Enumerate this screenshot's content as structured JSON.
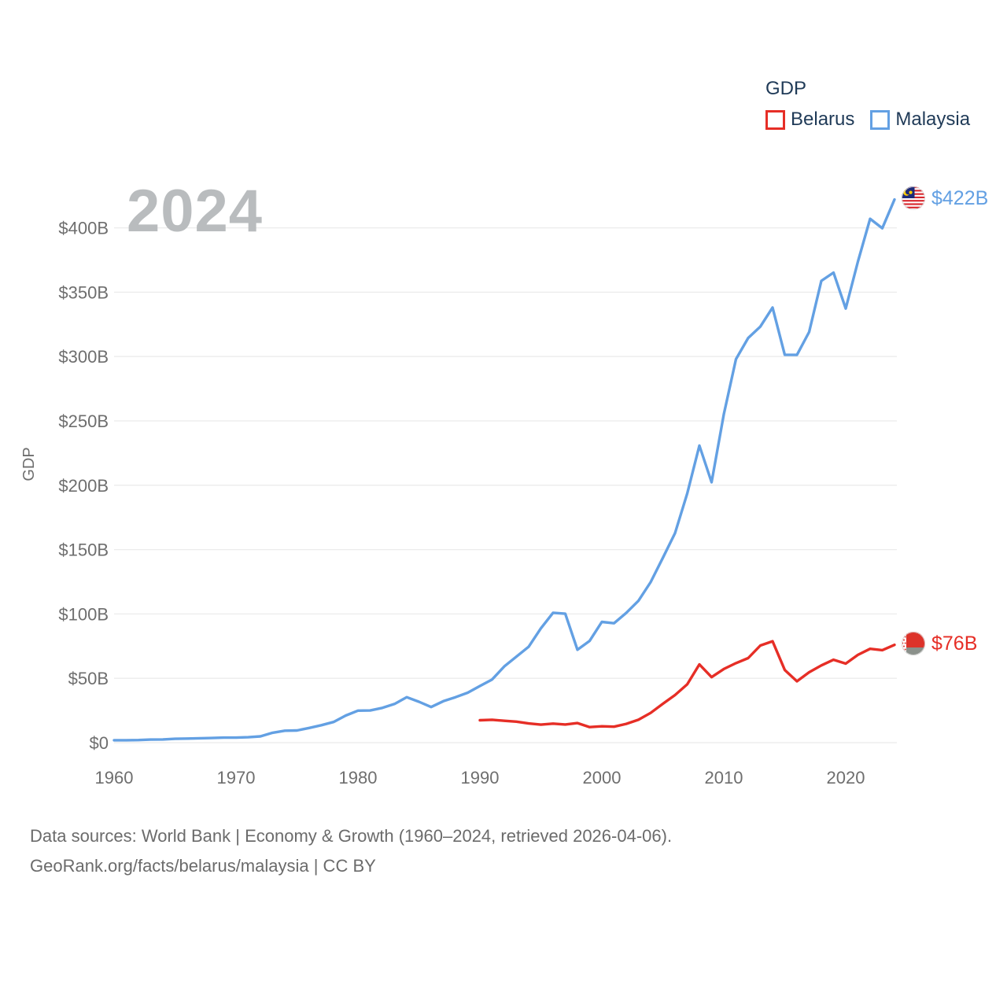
{
  "colors": {
    "legend_text": "#1f3a57",
    "axis_text": "#6e6e6e",
    "grid": "#ebebeb",
    "watermark": "#b9bcbe",
    "footer_text": "#6b6b6b",
    "background": "#ffffff"
  },
  "footer": {
    "line1": "Data sources: World Bank | Economy & Growth (1960–2024, retrieved 2026-04-06).",
    "line2": "GeoRank.org/facts/belarus/malaysia | CC BY"
  },
  "chart_data": {
    "type": "line",
    "title": "GDP",
    "ylabel": "GDP",
    "watermark": "2024",
    "grid": true,
    "legend_position": "top-right",
    "xlim": [
      1960,
      2024
    ],
    "ylim": [
      0,
      430
    ],
    "x_ticks": [
      1960,
      1970,
      1980,
      1990,
      2000,
      2010,
      2020
    ],
    "y_ticks": [
      {
        "value": 0,
        "label": "$0"
      },
      {
        "value": 50,
        "label": "$50B"
      },
      {
        "value": 100,
        "label": "$100B"
      },
      {
        "value": 150,
        "label": "$150B"
      },
      {
        "value": 200,
        "label": "$200B"
      },
      {
        "value": 250,
        "label": "$250B"
      },
      {
        "value": 300,
        "label": "$300B"
      },
      {
        "value": 350,
        "label": "$350B"
      },
      {
        "value": 400,
        "label": "$400B"
      }
    ],
    "unit": "billions of USD",
    "series": [
      {
        "name": "Belarus",
        "color": "#e62e26",
        "end_label": "$76B",
        "years": [
          1990,
          1991,
          1992,
          1993,
          1994,
          1995,
          1996,
          1997,
          1998,
          1999,
          2000,
          2001,
          2002,
          2003,
          2004,
          2005,
          2006,
          2007,
          2008,
          2009,
          2010,
          2011,
          2012,
          2013,
          2014,
          2015,
          2016,
          2017,
          2018,
          2019,
          2020,
          2021,
          2022,
          2023,
          2024
        ],
        "values": [
          17.4,
          17.8,
          17.0,
          16.3,
          14.9,
          14.0,
          14.8,
          14.1,
          15.2,
          12.1,
          12.7,
          12.4,
          14.6,
          17.8,
          23.1,
          30.2,
          37.0,
          45.3,
          60.8,
          50.9,
          57.2,
          61.8,
          65.7,
          75.5,
          78.8,
          56.5,
          47.7,
          54.7,
          60.0,
          64.4,
          61.4,
          68.2,
          72.9,
          71.9,
          76.0
        ]
      },
      {
        "name": "Malaysia",
        "color": "#63a0e3",
        "end_label": "$422B",
        "years": [
          1960,
          1961,
          1962,
          1963,
          1964,
          1965,
          1966,
          1967,
          1968,
          1969,
          1970,
          1971,
          1972,
          1973,
          1974,
          1975,
          1976,
          1977,
          1978,
          1979,
          1980,
          1981,
          1982,
          1983,
          1984,
          1985,
          1986,
          1987,
          1988,
          1989,
          1990,
          1991,
          1992,
          1993,
          1994,
          1995,
          1996,
          1997,
          1998,
          1999,
          2000,
          2001,
          2002,
          2003,
          2004,
          2005,
          2006,
          2007,
          2008,
          2009,
          2010,
          2011,
          2012,
          2013,
          2014,
          2015,
          2016,
          2017,
          2018,
          2019,
          2020,
          2021,
          2022,
          2023,
          2024
        ],
        "values": [
          1.9,
          1.9,
          2.0,
          2.4,
          2.5,
          3.0,
          3.2,
          3.4,
          3.6,
          3.9,
          3.9,
          4.2,
          4.9,
          7.7,
          9.3,
          9.5,
          11.4,
          13.6,
          16.1,
          21.1,
          24.9,
          25.0,
          27.0,
          30.1,
          35.3,
          31.8,
          27.7,
          32.2,
          35.3,
          38.8,
          44.0,
          49.1,
          59.2,
          66.9,
          74.5,
          88.8,
          100.9,
          100.2,
          72.2,
          79.1,
          93.8,
          92.8,
          100.8,
          110.2,
          124.7,
          143.5,
          162.7,
          193.5,
          230.8,
          202.3,
          255.0,
          298.0,
          314.4,
          323.3,
          338.1,
          301.4,
          301.3,
          319.1,
          358.8,
          365.2,
          337.3,
          373.8,
          407.0,
          399.7,
          422.0
        ]
      }
    ]
  }
}
